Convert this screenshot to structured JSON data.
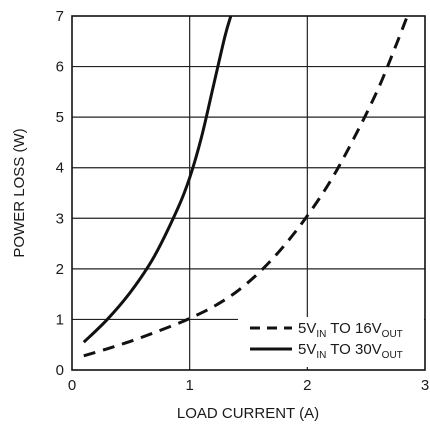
{
  "chart_data": {
    "type": "line",
    "xlabel": "LOAD CURRENT (A)",
    "ylabel": "POWER LOSS (W)",
    "xlim": [
      0,
      3
    ],
    "ylim": [
      0,
      7
    ],
    "x_ticks": [
      "0",
      "1",
      "2",
      "3"
    ],
    "y_ticks": [
      "0",
      "1",
      "2",
      "3",
      "4",
      "5",
      "6",
      "7"
    ],
    "grid": true,
    "legend_position": "bottom-right",
    "series": [
      {
        "legend": {
          "main1": "5V",
          "sub1": "IN",
          "main2": " TO 16V",
          "sub2": "OUT"
        },
        "style": "dashed",
        "color": "#111111",
        "x": [
          0.1,
          0.3,
          0.5,
          0.7,
          0.9,
          1.0,
          1.2,
          1.4,
          1.6,
          1.8,
          2.0,
          2.2,
          2.4,
          2.6,
          2.75,
          2.85
        ],
        "y": [
          0.28,
          0.42,
          0.57,
          0.74,
          0.92,
          1.02,
          1.25,
          1.55,
          1.95,
          2.45,
          3.05,
          3.75,
          4.6,
          5.55,
          6.4,
          7.0
        ]
      },
      {
        "legend": {
          "main1": "5V",
          "sub1": "IN",
          "main2": " TO 30V",
          "sub2": "OUT"
        },
        "style": "solid",
        "color": "#111111",
        "x": [
          0.1,
          0.3,
          0.5,
          0.7,
          0.9,
          1.0,
          1.1,
          1.2,
          1.3,
          1.35
        ],
        "y": [
          0.55,
          1.0,
          1.55,
          2.25,
          3.2,
          3.8,
          4.6,
          5.6,
          6.6,
          7.0
        ]
      }
    ]
  }
}
